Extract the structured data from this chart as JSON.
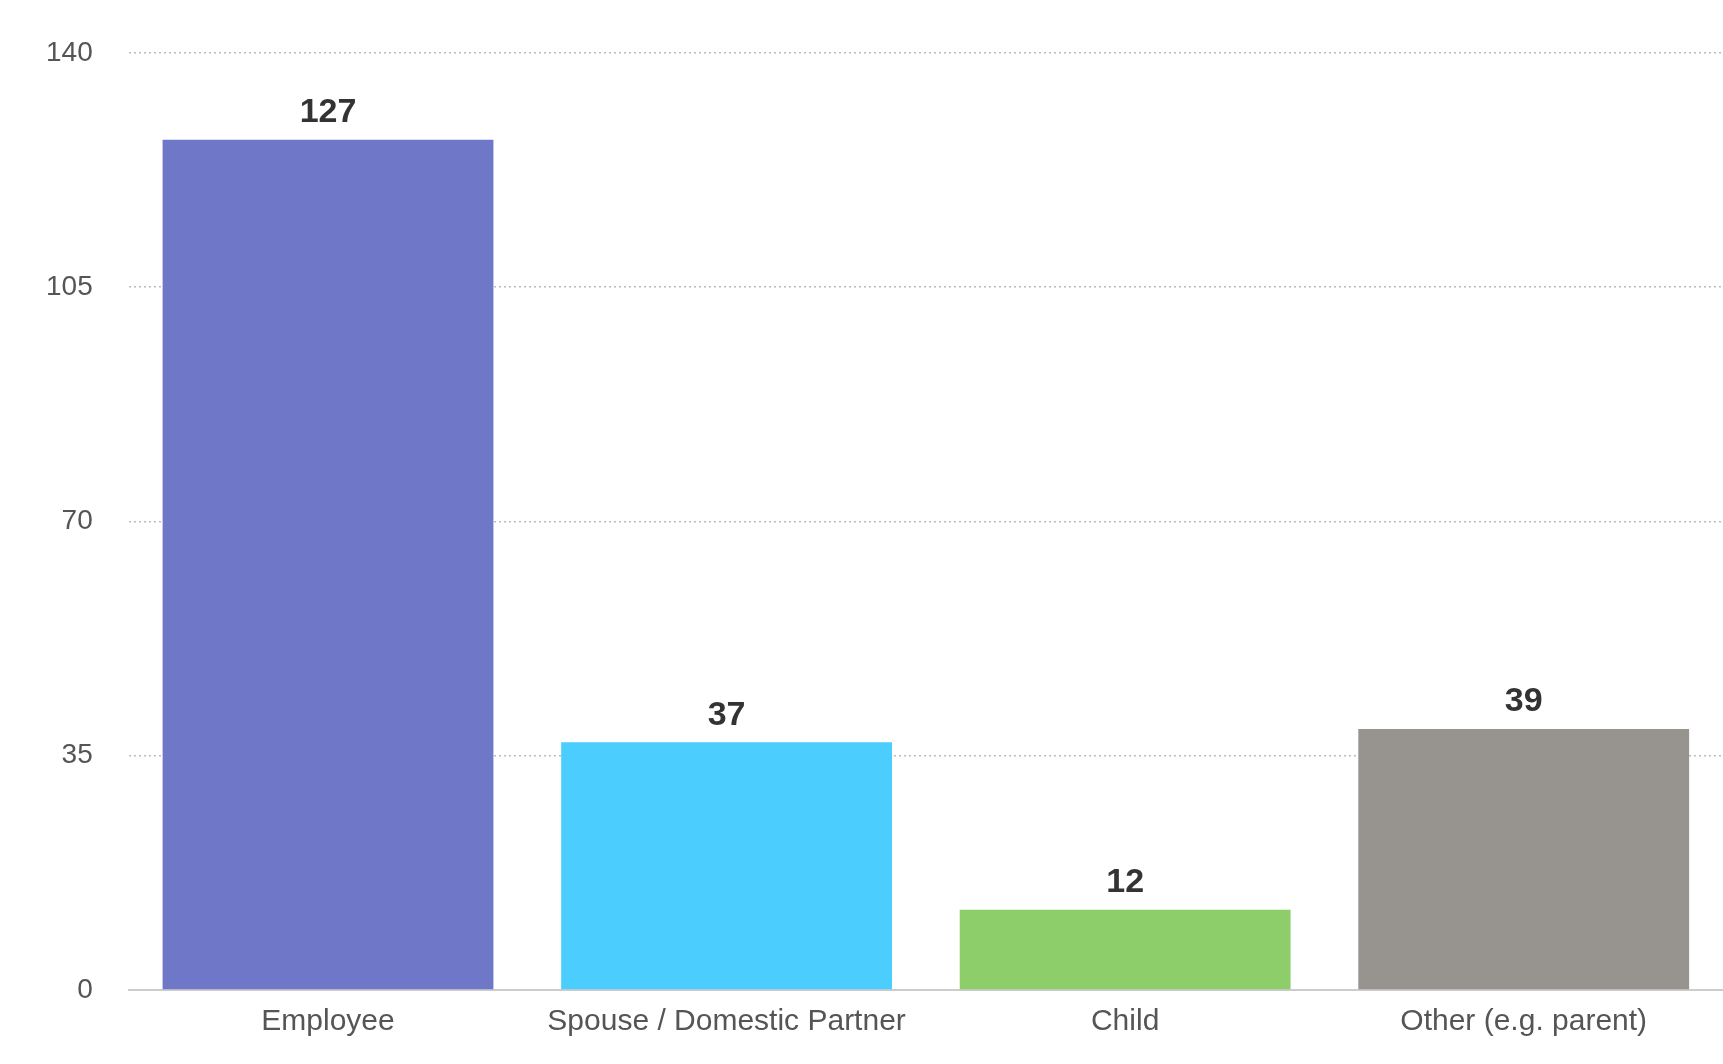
{
  "chart_data": {
    "type": "bar",
    "categories": [
      "Employee",
      "Spouse / Domestic Partner",
      "Child",
      "Other (e.g. parent)"
    ],
    "values": [
      127,
      37,
      12,
      39
    ],
    "colors": [
      "#6f77c8",
      "#4bcdfd",
      "#8dcd6a",
      "#97948f"
    ],
    "ylim": [
      0,
      140
    ],
    "yticks": [
      0,
      35,
      70,
      105,
      140
    ],
    "grid": "y",
    "data_labels": true,
    "legend": false
  }
}
